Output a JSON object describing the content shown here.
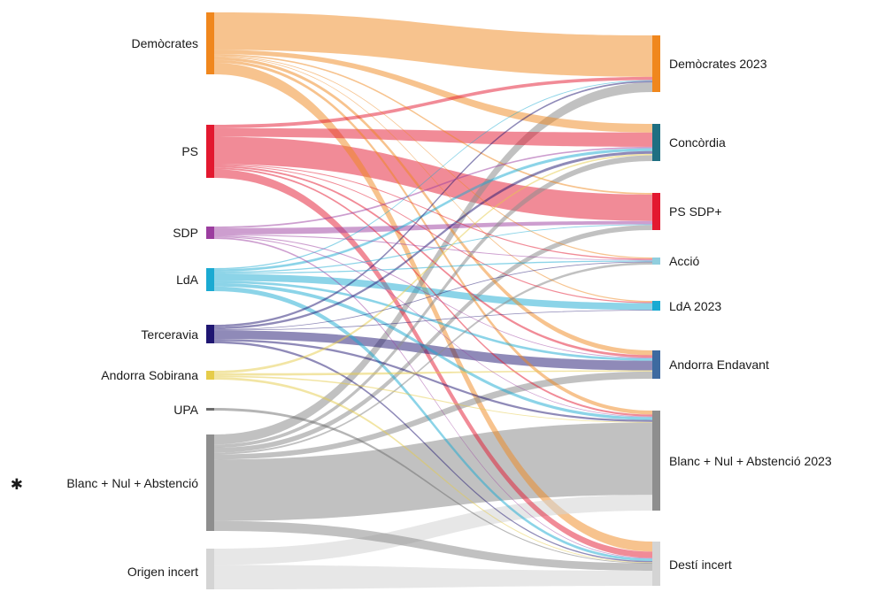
{
  "chart_data": {
    "type": "sankey",
    "source_nodes": [
      {
        "id": "dem",
        "label": "Demòcrates",
        "color": "#f0871d"
      },
      {
        "id": "ps",
        "label": "PS",
        "color": "#e3182f"
      },
      {
        "id": "sdp",
        "label": "SDP",
        "color": "#9b3d9f"
      },
      {
        "id": "lda",
        "label": "LdA",
        "color": "#1aaad2"
      },
      {
        "id": "ter",
        "label": "Terceravia",
        "color": "#1f1672"
      },
      {
        "id": "aso",
        "label": "Andorra Sobirana",
        "color": "#e6cc4a"
      },
      {
        "id": "upa",
        "label": "UPA",
        "color": "#6b6b6b"
      },
      {
        "id": "bna",
        "label": "Blanc + Nul + Abstenció",
        "color": "#8e8e8e",
        "marker": "*"
      },
      {
        "id": "ori",
        "label": "Origen incert",
        "color": "#d4d4d4"
      }
    ],
    "target_nodes": [
      {
        "id": "dem23",
        "label": "Demòcrates 2023",
        "color": "#f0871d"
      },
      {
        "id": "con",
        "label": "Concòrdia",
        "color": "#1f6f82"
      },
      {
        "id": "pss",
        "label": "PS SDP+",
        "color": "#e3182f"
      },
      {
        "id": "acc",
        "label": "Acció",
        "color": "#90cede"
      },
      {
        "id": "lda23",
        "label": "LdA 2023",
        "color": "#1aaad2"
      },
      {
        "id": "ae",
        "label": "Andorra Endavant",
        "color": "#3e6aa0"
      },
      {
        "id": "bna23",
        "label": "Blanc + Nul + Abstenció 2023",
        "color": "#8e8e8e"
      },
      {
        "id": "di",
        "label": "Destí incert",
        "color": "#d4d4d4"
      }
    ],
    "flows": [
      [
        "dem",
        "dem23",
        26
      ],
      [
        "dem",
        "con",
        3
      ],
      [
        "dem",
        "pss",
        1
      ],
      [
        "dem",
        "acc",
        0.5
      ],
      [
        "dem",
        "lda23",
        0.5
      ],
      [
        "dem",
        "ae",
        2
      ],
      [
        "dem",
        "bna23",
        2
      ],
      [
        "dem",
        "di",
        8
      ],
      [
        "ps",
        "dem23",
        2
      ],
      [
        "ps",
        "con",
        5
      ],
      [
        "ps",
        "pss",
        16
      ],
      [
        "ps",
        "acc",
        0.5
      ],
      [
        "ps",
        "lda23",
        0.5
      ],
      [
        "ps",
        "ae",
        1
      ],
      [
        "ps",
        "bna23",
        1
      ],
      [
        "ps",
        "di",
        5
      ],
      [
        "sdp",
        "con",
        0.5
      ],
      [
        "sdp",
        "pss",
        2
      ],
      [
        "sdp",
        "acc",
        0.3
      ],
      [
        "sdp",
        "ae",
        0.3
      ],
      [
        "sdp",
        "bna23",
        0.3
      ],
      [
        "sdp",
        "di",
        0.5
      ],
      [
        "lda",
        "dem23",
        0.5
      ],
      [
        "lda",
        "con",
        1
      ],
      [
        "lda",
        "pss",
        0.5
      ],
      [
        "lda",
        "acc",
        0.5
      ],
      [
        "lda",
        "lda23",
        3
      ],
      [
        "lda",
        "ae",
        1
      ],
      [
        "lda",
        "bna23",
        1.5
      ],
      [
        "lda",
        "di",
        2
      ],
      [
        "ter",
        "dem23",
        1
      ],
      [
        "ter",
        "con",
        1
      ],
      [
        "ter",
        "acc",
        0.3
      ],
      [
        "ter",
        "lda23",
        0.3
      ],
      [
        "ter",
        "ae",
        4
      ],
      [
        "ter",
        "bna23",
        1
      ],
      [
        "ter",
        "di",
        1
      ],
      [
        "aso",
        "con",
        0.5
      ],
      [
        "aso",
        "ae",
        0.5
      ],
      [
        "aso",
        "bna23",
        0.3
      ],
      [
        "aso",
        "di",
        0.5
      ],
      [
        "upa",
        "di",
        0.3
      ],
      [
        "bna",
        "dem23",
        6
      ],
      [
        "bna",
        "con",
        2
      ],
      [
        "bna",
        "pss",
        3
      ],
      [
        "bna",
        "acc",
        1
      ],
      [
        "bna",
        "ae",
        3
      ],
      [
        "bna",
        "bna23",
        37
      ],
      [
        "bna",
        "di",
        6
      ],
      [
        "ori",
        "bna23",
        8
      ],
      [
        "ori",
        "di",
        12
      ]
    ]
  }
}
